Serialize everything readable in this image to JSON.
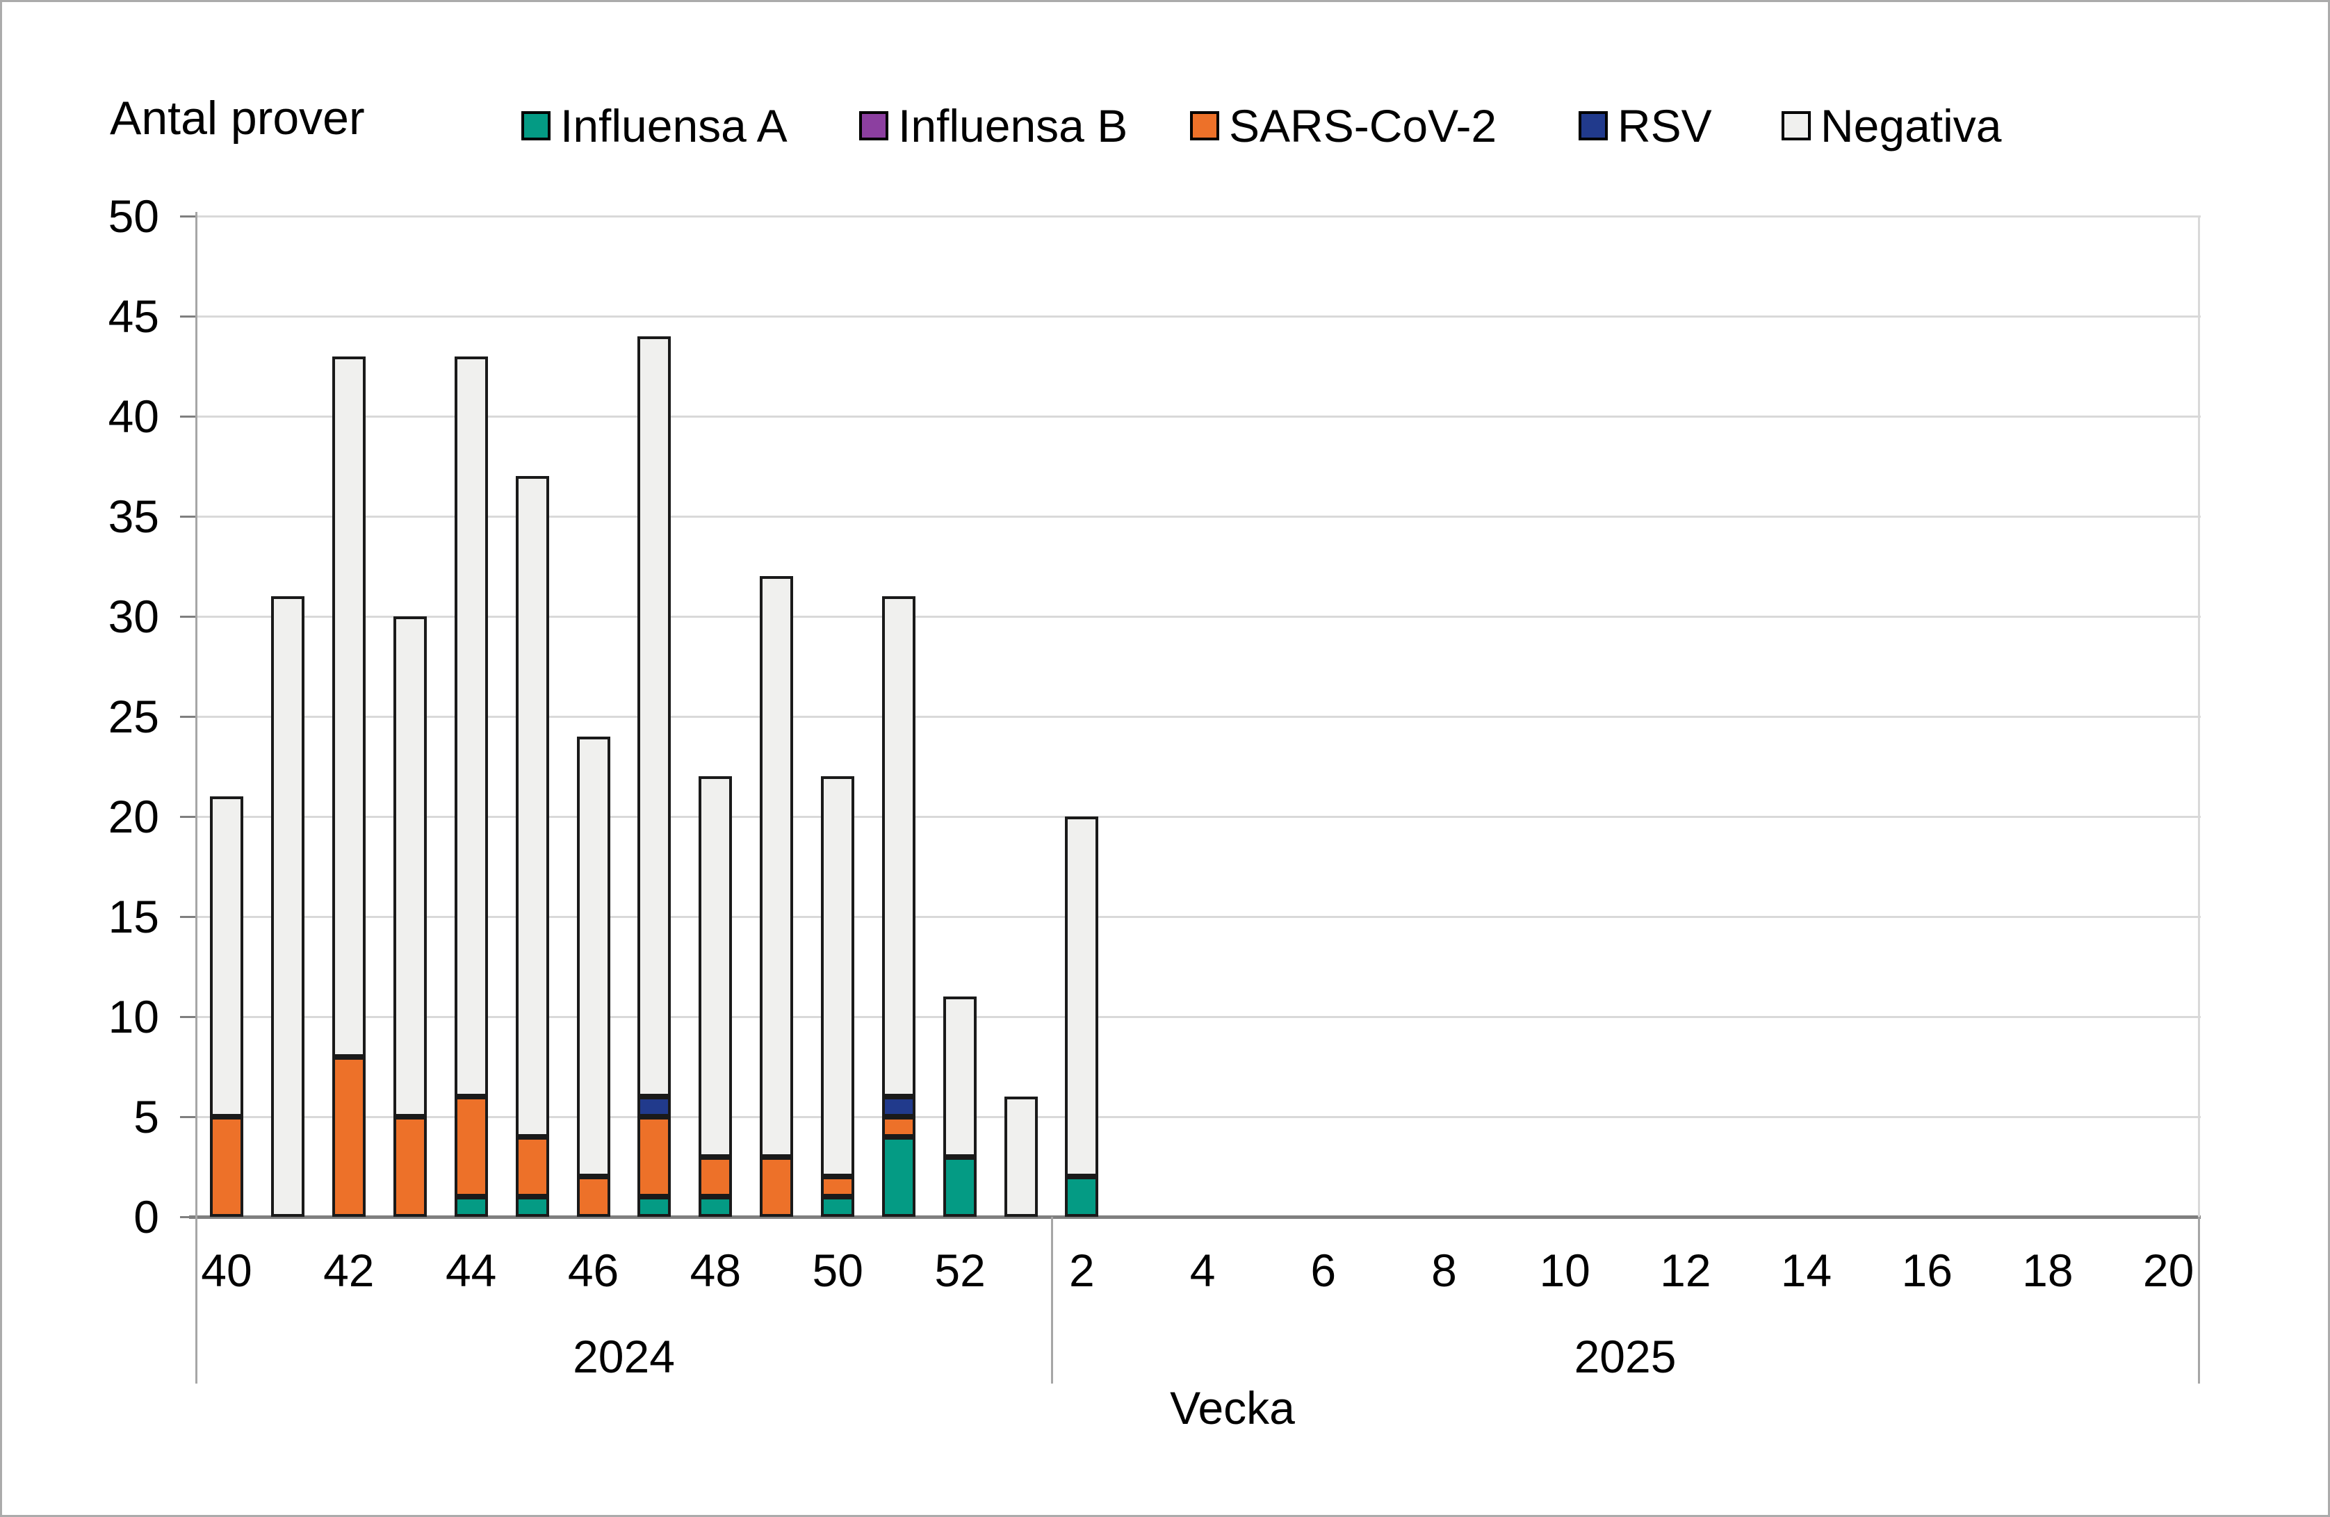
{
  "title": "Antal prover",
  "x_axis_title": "Vecka",
  "legend": {
    "items": [
      {
        "label": "Influensa A",
        "color": "#049b84"
      },
      {
        "label": "Influensa B",
        "color": "#8c3fa0"
      },
      {
        "label": "SARS-CoV-2",
        "color": "#ed7129"
      },
      {
        "label": "RSV",
        "color": "#213a8c"
      },
      {
        "label": "Negativa",
        "color": "#f0f0ee"
      }
    ]
  },
  "colors": {
    "gridline": "#d9d9d9",
    "zero_line": "#7f7f7f",
    "axis_line": "#a6a6a6",
    "bar_border": "#1a1a1a"
  },
  "chart_data": {
    "type": "bar",
    "stacked": true,
    "title": "Antal prover",
    "xlabel": "Vecka",
    "ylim": [
      0,
      50
    ],
    "y_ticks": [
      0,
      5,
      10,
      15,
      20,
      25,
      30,
      35,
      40,
      45,
      50
    ],
    "grid": "horizontal",
    "legend_position": "top",
    "series_names": [
      "Influensa A",
      "Influensa B",
      "SARS-CoV-2",
      "RSV",
      "Negativa"
    ],
    "sections": [
      {
        "year_label": "2024",
        "year": 2024
      },
      {
        "year_label": "2025",
        "year": 2025
      }
    ],
    "categories": [
      {
        "year": 2024,
        "week": 40,
        "label": "40",
        "values": [
          0,
          0,
          5,
          0,
          16
        ]
      },
      {
        "year": 2024,
        "week": 41,
        "label": "",
        "values": [
          0,
          0,
          0,
          0,
          31
        ]
      },
      {
        "year": 2024,
        "week": 42,
        "label": "42",
        "values": [
          0,
          0,
          8,
          0,
          35
        ]
      },
      {
        "year": 2024,
        "week": 43,
        "label": "",
        "values": [
          0,
          0,
          5,
          0,
          25
        ]
      },
      {
        "year": 2024,
        "week": 44,
        "label": "44",
        "values": [
          1,
          0,
          5,
          0,
          37
        ]
      },
      {
        "year": 2024,
        "week": 45,
        "label": "",
        "values": [
          1,
          0,
          3,
          0,
          33
        ]
      },
      {
        "year": 2024,
        "week": 46,
        "label": "46",
        "values": [
          0,
          0,
          2,
          0,
          22
        ]
      },
      {
        "year": 2024,
        "week": 47,
        "label": "",
        "values": [
          1,
          0,
          4,
          1,
          38
        ]
      },
      {
        "year": 2024,
        "week": 48,
        "label": "48",
        "values": [
          1,
          0,
          2,
          0,
          19
        ]
      },
      {
        "year": 2024,
        "week": 49,
        "label": "",
        "values": [
          0,
          0,
          3,
          0,
          29
        ]
      },
      {
        "year": 2024,
        "week": 50,
        "label": "50",
        "values": [
          1,
          0,
          1,
          0,
          20
        ]
      },
      {
        "year": 2024,
        "week": 51,
        "label": "",
        "values": [
          4,
          0,
          1,
          1,
          25
        ]
      },
      {
        "year": 2024,
        "week": 52,
        "label": "52",
        "values": [
          3,
          0,
          0,
          0,
          8
        ]
      },
      {
        "year": 2024,
        "week": 53,
        "label": "",
        "values": [
          0,
          0,
          0,
          0,
          6
        ]
      },
      {
        "year": 2025,
        "week": 2,
        "label": "2",
        "values": [
          2,
          0,
          0,
          0,
          18
        ]
      },
      {
        "year": 2025,
        "week": 3,
        "label": "",
        "values": [
          0,
          0,
          0,
          0,
          0
        ]
      },
      {
        "year": 2025,
        "week": 4,
        "label": "4",
        "values": [
          0,
          0,
          0,
          0,
          0
        ]
      },
      {
        "year": 2025,
        "week": 5,
        "label": "",
        "values": [
          0,
          0,
          0,
          0,
          0
        ]
      },
      {
        "year": 2025,
        "week": 6,
        "label": "6",
        "values": [
          0,
          0,
          0,
          0,
          0
        ]
      },
      {
        "year": 2025,
        "week": 7,
        "label": "",
        "values": [
          0,
          0,
          0,
          0,
          0
        ]
      },
      {
        "year": 2025,
        "week": 8,
        "label": "8",
        "values": [
          0,
          0,
          0,
          0,
          0
        ]
      },
      {
        "year": 2025,
        "week": 9,
        "label": "",
        "values": [
          0,
          0,
          0,
          0,
          0
        ]
      },
      {
        "year": 2025,
        "week": 10,
        "label": "10",
        "values": [
          0,
          0,
          0,
          0,
          0
        ]
      },
      {
        "year": 2025,
        "week": 11,
        "label": "",
        "values": [
          0,
          0,
          0,
          0,
          0
        ]
      },
      {
        "year": 2025,
        "week": 12,
        "label": "12",
        "values": [
          0,
          0,
          0,
          0,
          0
        ]
      },
      {
        "year": 2025,
        "week": 13,
        "label": "",
        "values": [
          0,
          0,
          0,
          0,
          0
        ]
      },
      {
        "year": 2025,
        "week": 14,
        "label": "14",
        "values": [
          0,
          0,
          0,
          0,
          0
        ]
      },
      {
        "year": 2025,
        "week": 15,
        "label": "",
        "values": [
          0,
          0,
          0,
          0,
          0
        ]
      },
      {
        "year": 2025,
        "week": 16,
        "label": "16",
        "values": [
          0,
          0,
          0,
          0,
          0
        ]
      },
      {
        "year": 2025,
        "week": 17,
        "label": "",
        "values": [
          0,
          0,
          0,
          0,
          0
        ]
      },
      {
        "year": 2025,
        "week": 18,
        "label": "18",
        "values": [
          0,
          0,
          0,
          0,
          0
        ]
      },
      {
        "year": 2025,
        "week": 19,
        "label": "",
        "values": [
          0,
          0,
          0,
          0,
          0
        ]
      },
      {
        "year": 2025,
        "week": 20,
        "label": "20",
        "values": [
          0,
          0,
          0,
          0,
          0
        ]
      }
    ]
  }
}
